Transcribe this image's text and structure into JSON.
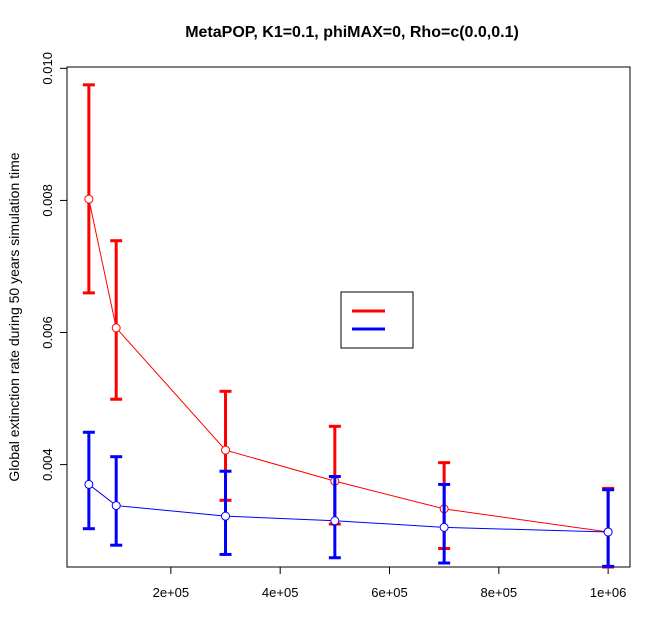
{
  "chart_data": {
    "type": "line",
    "title": "MetaPOP, K1=0.1, phiMAX=0, Rho=c(0.0,0.1)",
    "xlabel": "",
    "ylabel": "Global extinction rate during 50 years simulation time",
    "xlim": [
      10000,
      1040000
    ],
    "ylim": [
      0.00245,
      0.01002
    ],
    "x_ticks": [
      200000,
      400000,
      600000,
      800000,
      1000000
    ],
    "x_tick_labels": [
      "2e+05",
      "4e+05",
      "6e+05",
      "8e+05",
      "1e+06"
    ],
    "y_ticks": [
      0.004,
      0.006,
      0.008,
      0.01
    ],
    "y_tick_labels": [
      "0.004",
      "0.006",
      "0.008",
      "0.010"
    ],
    "x": [
      50000,
      100000,
      300000,
      500000,
      700000,
      1000000
    ],
    "series": [
      {
        "color": "#ff0000",
        "values": [
          0.00802,
          0.00607,
          0.00422,
          0.00375,
          0.00333,
          0.00298
        ],
        "lower": [
          0.0066,
          0.00499,
          0.00346,
          0.0031,
          0.00273,
          0.00245
        ],
        "upper": [
          0.00975,
          0.00739,
          0.00511,
          0.00458,
          0.00403,
          0.00364
        ]
      },
      {
        "color": "#0000ff",
        "values": [
          0.0037,
          0.00338,
          0.00322,
          0.00315,
          0.00305,
          0.00298
        ],
        "lower": [
          0.00303,
          0.00278,
          0.00264,
          0.00259,
          0.00251,
          0.00246
        ],
        "upper": [
          0.00449,
          0.00412,
          0.0039,
          0.00382,
          0.0037,
          0.00362
        ]
      }
    ],
    "legend": {
      "position": "center",
      "entries": [
        {
          "color": "#ff0000",
          "label": ""
        },
        {
          "color": "#0000ff",
          "label": ""
        }
      ]
    },
    "grid": false
  }
}
